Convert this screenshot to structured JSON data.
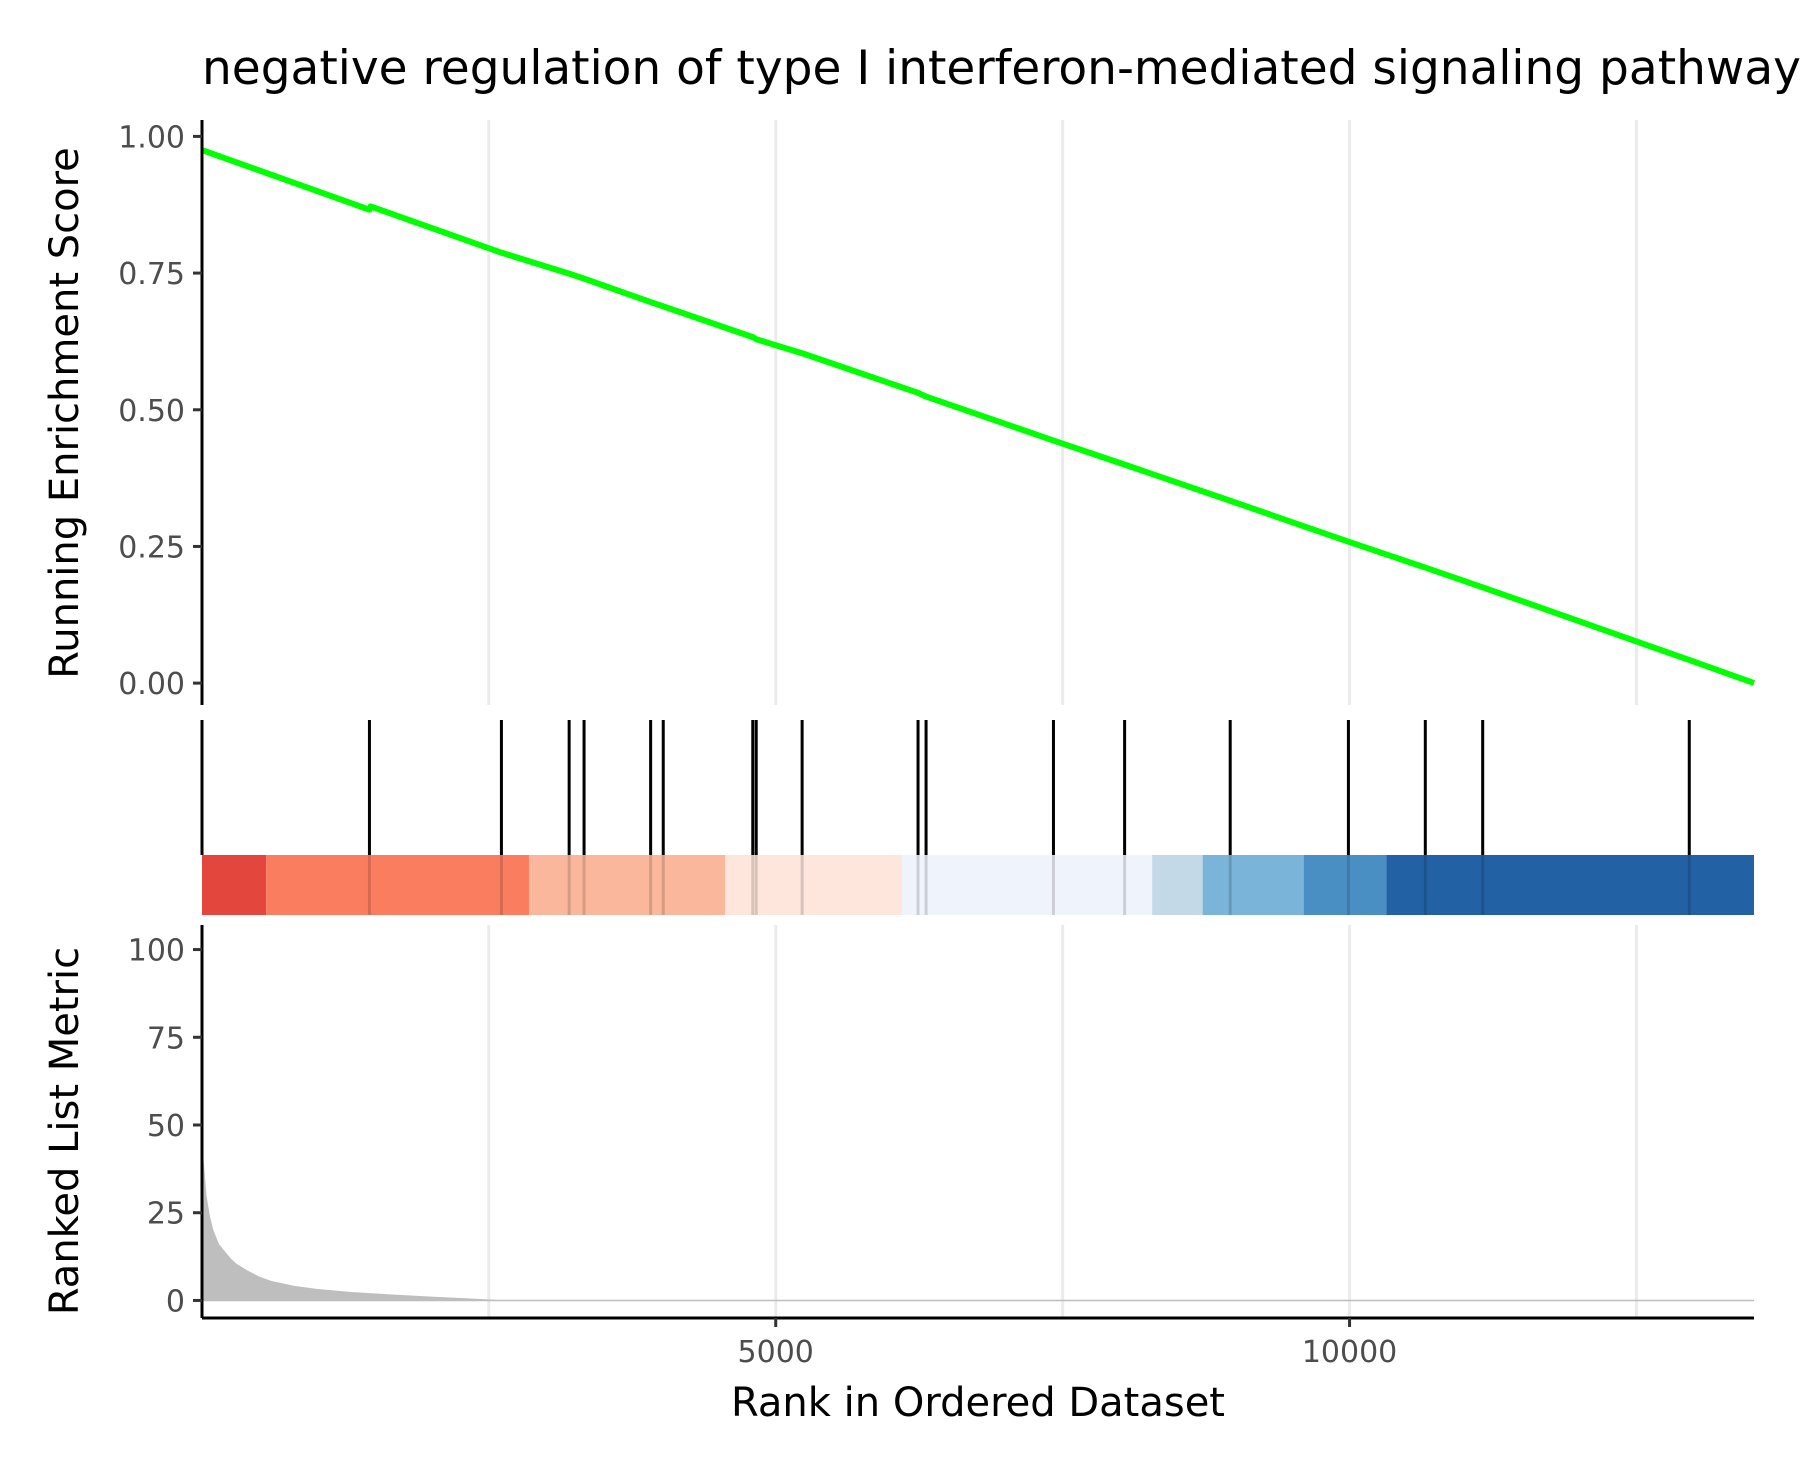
{
  "chart_data": {
    "type": "line",
    "title": "negative regulation of type I interferon-mediated signaling pathway",
    "x_range": [
      1,
      13524
    ],
    "colors": {
      "running_score": "#00ff00",
      "ranked_metric": "#bebebe",
      "gene_hit": "#000000",
      "gridline": "#ebebeb"
    },
    "panels": [
      {
        "name": "running-enrichment-score",
        "type": "line",
        "ylabel": "Running Enrichment Score",
        "ylim": [
          -0.04,
          1.03
        ],
        "yticks": [
          0.0,
          0.25,
          0.5,
          0.75,
          1.0
        ],
        "ytick_labels": [
          "0.00",
          "0.25",
          "0.50",
          "0.75",
          "1.00"
        ],
        "series": [
          {
            "x": [
              1,
              1460,
              1470,
              2600,
              3200,
              3330,
              3910,
              4020,
              4800,
              4830,
              5250,
              6240,
              6310,
              7430,
              8050,
              8970,
              10000,
              10650,
              11150,
              12950,
              13524
            ],
            "y": [
              0.975,
              0.866,
              0.872,
              0.788,
              0.749,
              0.74,
              0.697,
              0.689,
              0.633,
              0.629,
              0.602,
              0.531,
              0.524,
              0.443,
              0.399,
              0.333,
              0.258,
              0.212,
              0.176,
              0.043,
              0.0
            ]
          }
        ]
      },
      {
        "name": "gene-hits",
        "type": "barcode",
        "hits": [
          1460,
          2610,
          3200,
          3330,
          3910,
          4020,
          4800,
          4830,
          5230,
          6240,
          6310,
          7420,
          8040,
          8960,
          9990,
          10660,
          11160,
          12960
        ],
        "color_bands": [
          {
            "x0": 1,
            "x1": 560,
            "color": "#e3463c"
          },
          {
            "x0": 560,
            "x1": 2850,
            "color": "#fb7d5f"
          },
          {
            "x0": 2850,
            "x1": 4560,
            "color": "#fbb79c"
          },
          {
            "x0": 4560,
            "x1": 6100,
            "color": "#fee6dc"
          },
          {
            "x0": 6100,
            "x1": 8280,
            "color": "#eff3fc"
          },
          {
            "x0": 8280,
            "x1": 8720,
            "color": "#c4d9e8"
          },
          {
            "x0": 8720,
            "x1": 9600,
            "color": "#7ab5d9"
          },
          {
            "x0": 9600,
            "x1": 10320,
            "color": "#4a8fc4"
          },
          {
            "x0": 10320,
            "x1": 13524,
            "color": "#2262a4"
          }
        ]
      },
      {
        "name": "ranked-list-metric",
        "type": "area",
        "xlabel": "Rank in Ordered Dataset",
        "ylabel": "Ranked List Metric",
        "ylim": [
          -5,
          107
        ],
        "yticks": [
          0,
          25,
          50,
          75,
          100
        ],
        "ytick_labels": [
          "0",
          "25",
          "50",
          "75",
          "100"
        ],
        "xticks": [
          5000,
          10000
        ],
        "xtick_labels": [
          "5000",
          "10000"
        ],
        "series": [
          {
            "x": [
              1,
              15,
              40,
              70,
              100,
              150,
              200,
              250,
              300,
              400,
              500,
              600,
              800,
              1000,
              1300,
              1600,
              2000,
              2300,
              2550,
              2600,
              13524
            ],
            "y": [
              48,
              40,
              30,
              24,
              20,
              16,
              14,
              12,
              10.5,
              8.5,
              6.8,
              5.6,
              4.2,
              3.3,
              2.4,
              1.8,
              1.1,
              0.6,
              0.2,
              0,
              0
            ]
          }
        ]
      }
    ]
  }
}
